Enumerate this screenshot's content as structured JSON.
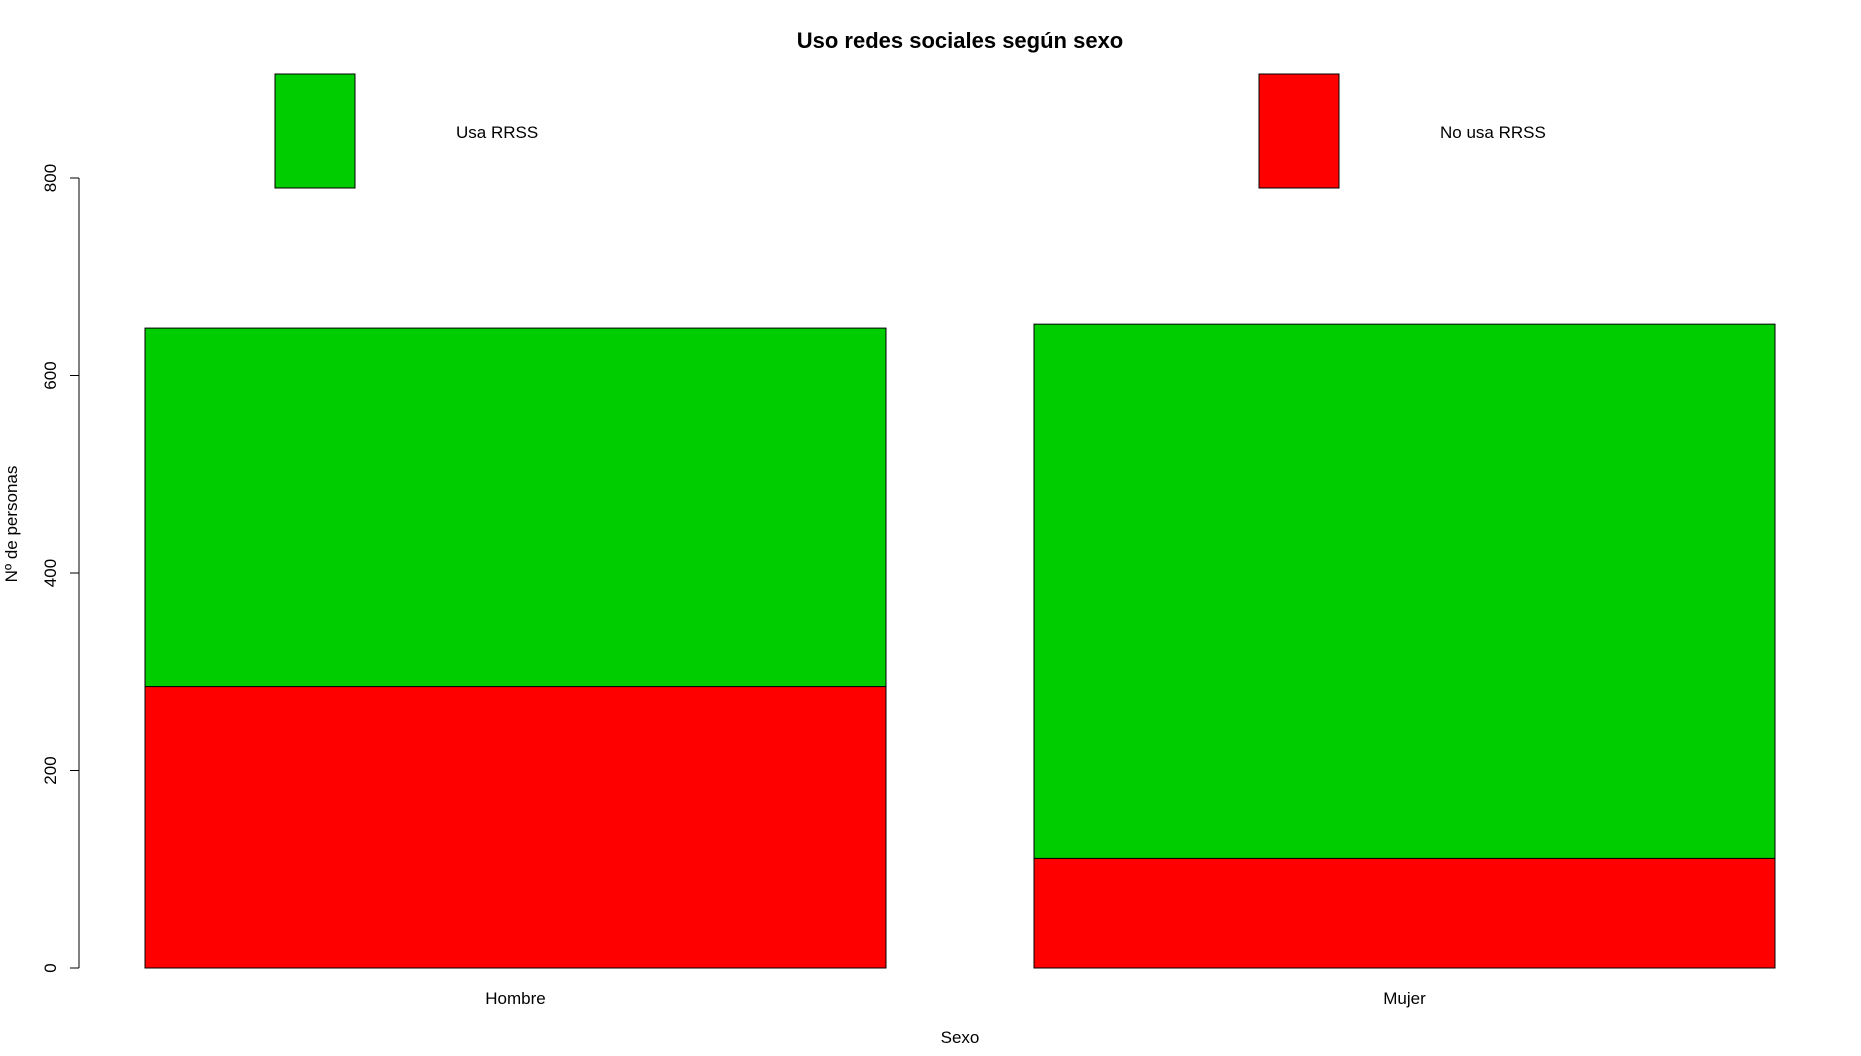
{
  "chart_data": {
    "type": "bar",
    "stacked": true,
    "title": "Uso redes sociales según sexo",
    "xlabel": "Sexo",
    "ylabel": "Nº de personas",
    "categories": [
      "Hombre",
      "Mujer"
    ],
    "series": [
      {
        "name": "No usa RRSS",
        "values": [
          285,
          111
        ],
        "color": "#ff0000"
      },
      {
        "name": "Usa RRSS",
        "values": [
          363,
          541
        ],
        "color": "#00cd00"
      }
    ],
    "legend": [
      {
        "label": "Usa RRSS",
        "color": "#00cd00"
      },
      {
        "label": "No usa RRSS",
        "color": "#ff0000"
      }
    ],
    "ylim": [
      0,
      800
    ],
    "yticks": [
      "0",
      "200",
      "400",
      "600",
      "800"
    ],
    "grid": false,
    "legend_position": "top"
  }
}
